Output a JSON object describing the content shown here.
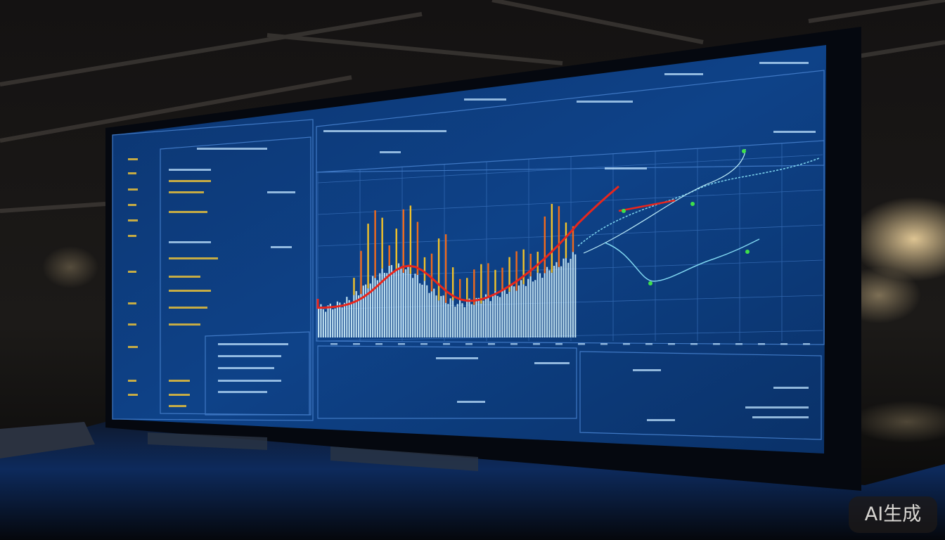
{
  "watermark": {
    "text": "AI生成"
  },
  "colors": {
    "screen_bg": "#0d3a78",
    "screen_dark": "#082a5a",
    "grid_line": "#3f78c4",
    "bar_fill": "#cfeefa",
    "spike_yellow": "#f2c22a",
    "spike_orange": "#f06a1c",
    "trend_red": "#e8261c",
    "line_cyan": "#7fd6f0",
    "marker_green": "#3fe04a",
    "label_yellow": "#e8c03a"
  }
}
